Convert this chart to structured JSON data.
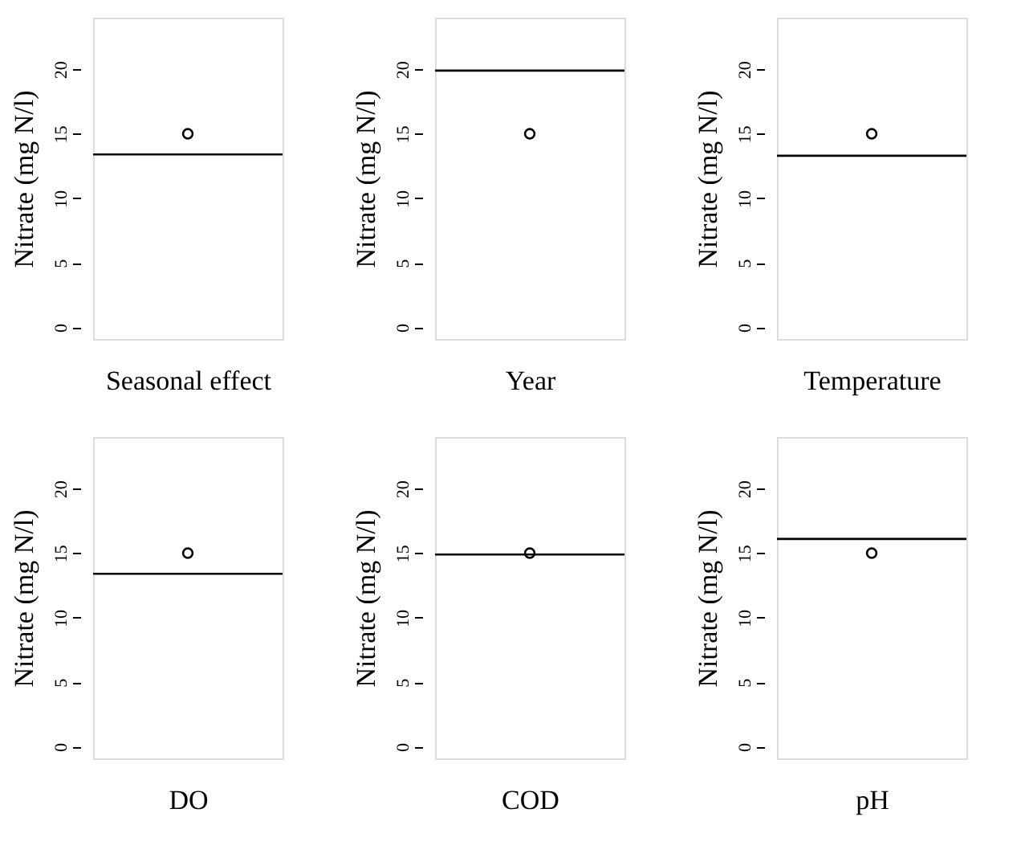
{
  "chart_data": [
    {
      "type": "scatter",
      "categories": [
        null
      ],
      "values": [
        15
      ],
      "xlabel": "Seasonal effect",
      "ylabel": "Nitrate (mg N/l)",
      "ylim": [
        -0.9,
        24
      ],
      "yticks": [
        0,
        5,
        10,
        15,
        20
      ],
      "tick_labels": "y",
      "marker": "circle",
      "ref_lines": [
        {
          "axis": "y",
          "value": 13.4
        }
      ]
    },
    {
      "type": "scatter",
      "categories": [
        null
      ],
      "values": [
        15
      ],
      "xlabel": "Year",
      "ylabel": "Nitrate (mg N/l)",
      "ylim": [
        -0.9,
        24
      ],
      "yticks": [
        0,
        5,
        10,
        15,
        20
      ],
      "tick_labels": "y",
      "marker": "circle",
      "ref_lines": [
        {
          "axis": "y",
          "value": 19.9
        }
      ]
    },
    {
      "type": "scatter",
      "categories": [
        null
      ],
      "values": [
        15
      ],
      "xlabel": "Temperature",
      "ylabel": "Nitrate (mg N/l)",
      "ylim": [
        -0.9,
        24
      ],
      "yticks": [
        0,
        5,
        10,
        15,
        20
      ],
      "tick_labels": "y",
      "marker": "circle",
      "ref_lines": [
        {
          "axis": "y",
          "value": 13.3
        }
      ]
    },
    {
      "type": "scatter",
      "categories": [
        null
      ],
      "values": [
        15
      ],
      "xlabel": "DO",
      "ylabel": "Nitrate (mg N/l)",
      "ylim": [
        -0.9,
        24
      ],
      "yticks": [
        0,
        5,
        10,
        15,
        20
      ],
      "tick_labels": "y",
      "marker": "circle",
      "ref_lines": [
        {
          "axis": "y",
          "value": 13.4
        }
      ]
    },
    {
      "type": "scatter",
      "categories": [
        null
      ],
      "values": [
        15
      ],
      "xlabel": "COD",
      "ylabel": "Nitrate (mg N/l)",
      "ylim": [
        -0.9,
        24
      ],
      "yticks": [
        0,
        5,
        10,
        15,
        20
      ],
      "tick_labels": "y",
      "marker": "circle",
      "ref_lines": [
        {
          "axis": "y",
          "value": 14.9
        }
      ]
    },
    {
      "type": "scatter",
      "categories": [
        null
      ],
      "values": [
        15
      ],
      "xlabel": "pH",
      "ylabel": "Nitrate (mg N/l)",
      "ylim": [
        -0.9,
        24
      ],
      "yticks": [
        0,
        5,
        10,
        15,
        20
      ],
      "tick_labels": "y",
      "marker": "circle",
      "ref_lines": [
        {
          "axis": "y",
          "value": 16.1
        }
      ]
    }
  ]
}
